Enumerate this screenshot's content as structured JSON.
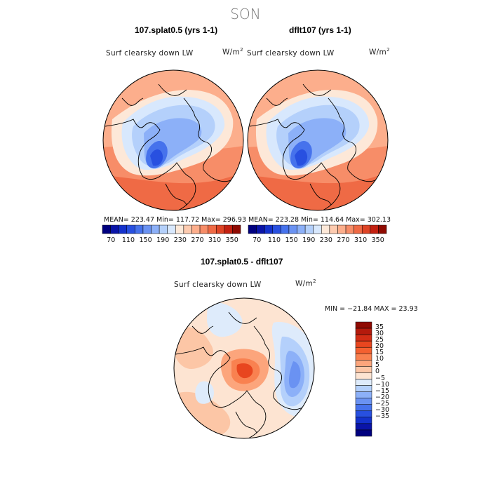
{
  "page": {
    "season": "SON",
    "units_base": "W/m",
    "units_exp": "2"
  },
  "panels": [
    {
      "title": "107.splat0.5 (yrs 1-1)",
      "variable": "Surf clearsky down LW",
      "stats": "MEAN= 223.47   Min= 117.72   Max= 296.93"
    },
    {
      "title": "dflt107 (yrs 1-1)",
      "variable": "Surf clearsky down LW",
      "stats": "MEAN= 223.28   Min= 114.64   Max= 302.13"
    },
    {
      "title": "107.splat0.5 - dflt107",
      "variable": "Surf clearsky down LW",
      "stats": "MIN = −21.84  MAX =  23.93"
    }
  ],
  "chart_data": [
    {
      "type": "heatmap",
      "projection": "north polar stereographic",
      "title": "107.splat0.5 (yrs 1-1)",
      "variable": "Surf clearsky down LW",
      "units": "W/m^2",
      "mean": 223.47,
      "min": 117.72,
      "max": 296.93,
      "colorbar_orientation": "horizontal",
      "colorbar_ticks": [
        "70",
        "110",
        "150",
        "190",
        "230",
        "270",
        "310",
        "350"
      ],
      "levels": [
        50,
        70,
        90,
        110,
        130,
        150,
        170,
        190,
        210,
        230,
        250,
        270,
        290,
        310,
        330,
        350,
        370
      ],
      "colors": [
        "#00007f",
        "#0a14a8",
        "#1432cc",
        "#2850e0",
        "#4672ec",
        "#6a92f2",
        "#8cb0f8",
        "#b4d0fb",
        "#d8e8fd",
        "#fde8d8",
        "#fdcbb0",
        "#fcae8c",
        "#f78d68",
        "#ef6a45",
        "#de4425",
        "#c32010",
        "#8f0a02"
      ]
    },
    {
      "type": "heatmap",
      "projection": "north polar stereographic",
      "title": "dflt107 (yrs 1-1)",
      "variable": "Surf clearsky down LW",
      "units": "W/m^2",
      "mean": 223.28,
      "min": 114.64,
      "max": 302.13,
      "colorbar_orientation": "horizontal",
      "colorbar_ticks": [
        "70",
        "110",
        "150",
        "190",
        "230",
        "270",
        "310",
        "350"
      ],
      "levels": [
        50,
        70,
        90,
        110,
        130,
        150,
        170,
        190,
        210,
        230,
        250,
        270,
        290,
        310,
        330,
        350,
        370
      ],
      "colors": [
        "#00007f",
        "#0a14a8",
        "#1432cc",
        "#2850e0",
        "#4672ec",
        "#6a92f2",
        "#8cb0f8",
        "#b4d0fb",
        "#d8e8fd",
        "#fde8d8",
        "#fdcbb0",
        "#fcae8c",
        "#f78d68",
        "#ef6a45",
        "#de4425",
        "#c32010",
        "#8f0a02"
      ]
    },
    {
      "type": "heatmap",
      "projection": "north polar stereographic",
      "title": "107.splat0.5 - dflt107",
      "variable": "Surf clearsky down LW",
      "units": "W/m^2",
      "min": -21.84,
      "max": 23.93,
      "colorbar_orientation": "vertical",
      "colorbar_ticks": [
        "35",
        "30",
        "25",
        "20",
        "15",
        "10",
        "5",
        "0",
        "−5",
        "−10",
        "−15",
        "−20",
        "−25",
        "−30",
        "−35"
      ],
      "colors_top_to_bottom": [
        "#8f0a02",
        "#b41a0c",
        "#d22d15",
        "#e8461f",
        "#f46030",
        "#f98150",
        "#fca57c",
        "#fcc6a6",
        "#fde4d2",
        "#deebfb",
        "#b4d0fb",
        "#8cb0f8",
        "#6a92f2",
        "#4672ec",
        "#2850e0",
        "#1432cc",
        "#0a14a8",
        "#00007f"
      ]
    }
  ]
}
